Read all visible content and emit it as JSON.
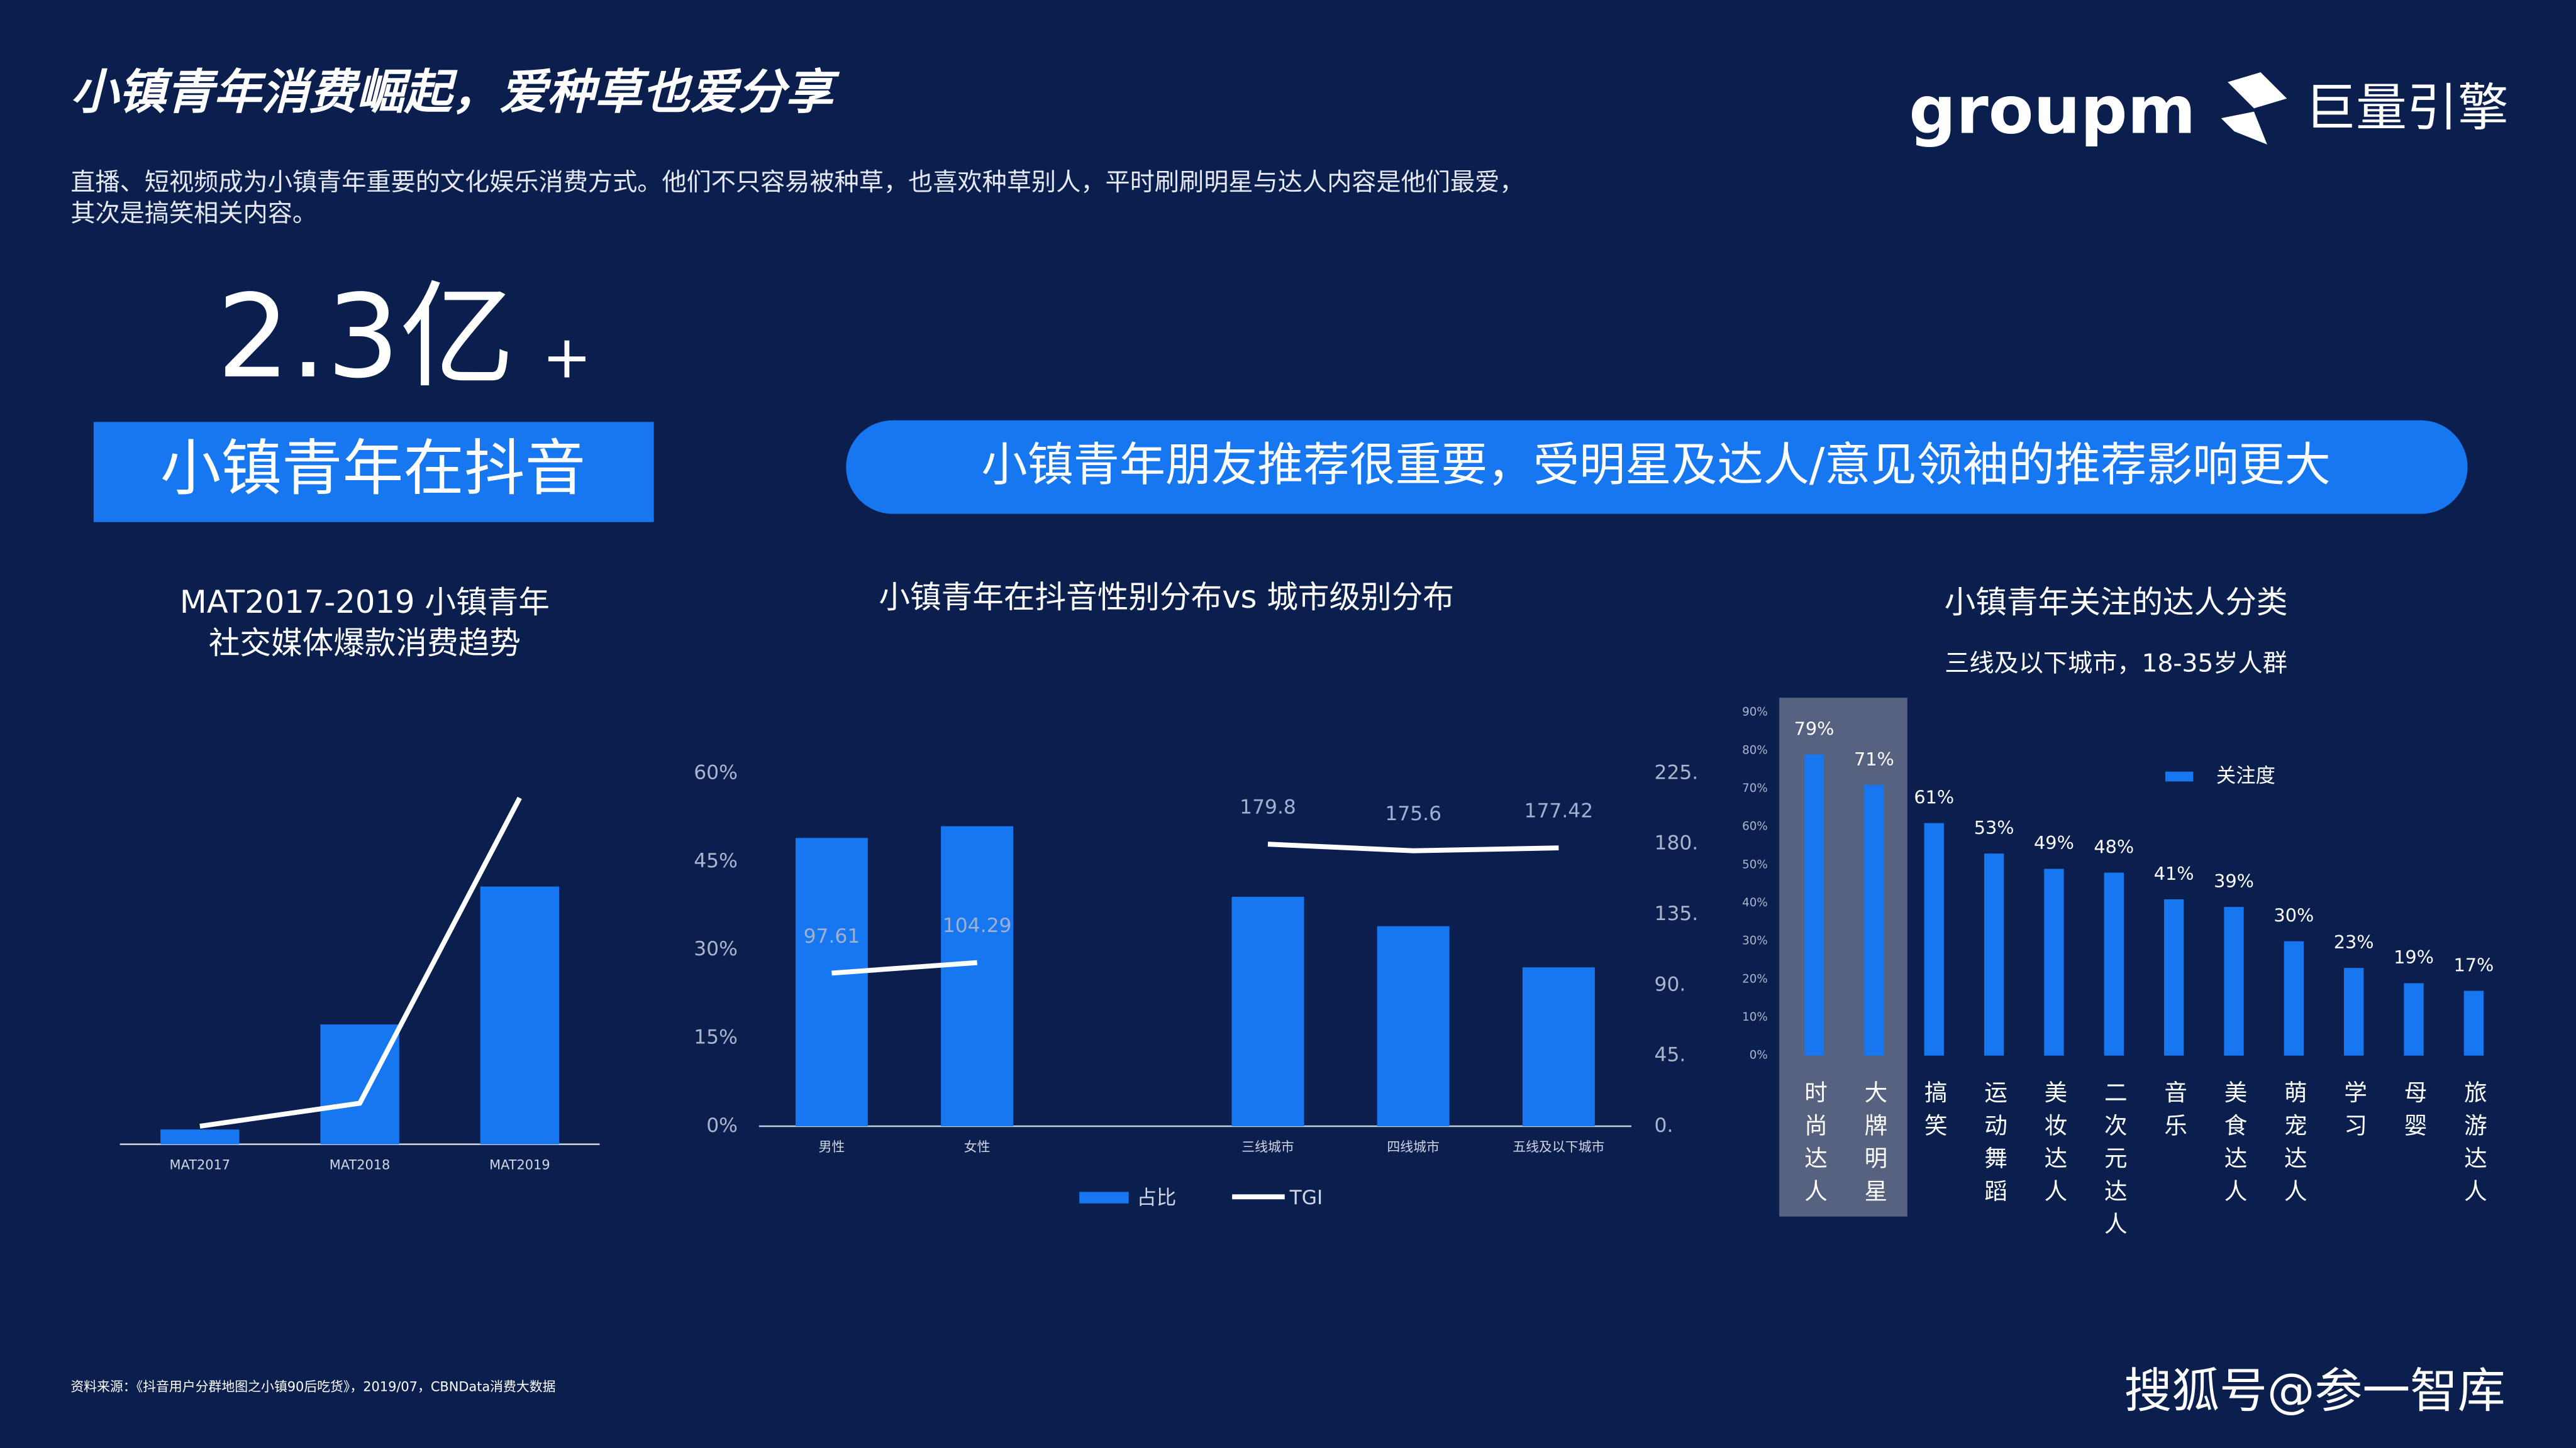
{
  "header": {
    "title": "小镇青年消费崛起，爱种草也爱分享",
    "subtitle": [
      "直播、短视频成为小镇青年重要的文化娱乐消费方式。他们不只容易被种草，也喜欢种草别人，平时刷刷明星与达人内容是他们最爱，",
      "其次是搞笑相关内容。"
    ],
    "logos": [
      "groupm",
      "巨量引擎"
    ]
  },
  "highlight": {
    "stat": "2.3亿",
    "suffix": "+",
    "label": "小镇青年在抖音"
  },
  "banner": "小镇青年朋友推荐很重要，受明星及达人/意见领袖的推荐影响更大",
  "source": "资料来源：《抖音用户分群地图之小镇90后吃货》，2019/07，CBNData消费大数据",
  "watermark": "搜狐号@参一智库",
  "chart_data": [
    {
      "type": "bar",
      "title": [
        "MAT2017-2019 小镇青年",
        "社交媒体爆款消费趋势"
      ],
      "categories": [
        "MAT2017",
        "MAT2018",
        "MAT2019"
      ],
      "series": [
        {
          "type": "bar",
          "color": "#1677f0",
          "values": [
            9,
            73,
            157
          ]
        },
        {
          "type": "line",
          "color": "#ffffff",
          "values": [
            11,
            25,
            211
          ]
        }
      ]
    },
    {
      "type": "bar",
      "title": "小镇青年在抖音性别分布vs 城市级别分布",
      "categories": [
        "男性",
        "女性",
        null,
        "三线城市",
        "四线城市",
        "五线及以下城市"
      ],
      "series": [
        {
          "name": "占比",
          "type": "bar",
          "color": "#1677f0",
          "values": [
            49,
            51,
            null,
            39,
            34,
            27
          ]
        },
        {
          "name": "TGI",
          "type": "line",
          "axis": "y2",
          "color": "#ffffff",
          "values": [
            97.61,
            104.29,
            null,
            179.8,
            175.6,
            177.42
          ]
        }
      ],
      "ylim": [
        0,
        60
      ],
      "yticks": [
        {
          "value": 0,
          "label": "0%"
        },
        {
          "value": 15,
          "label": "15%"
        },
        {
          "value": 30,
          "label": "30%"
        },
        {
          "value": 45,
          "label": "45%"
        },
        {
          "value": 60,
          "label": "60%"
        }
      ],
      "y2lim": [
        0,
        225
      ],
      "y2ticks": [
        {
          "value": 0,
          "label": "0."
        },
        {
          "value": 45,
          "label": "45."
        },
        {
          "value": 90,
          "label": "90."
        },
        {
          "value": 135,
          "label": "135."
        },
        {
          "value": 180,
          "label": "180."
        },
        {
          "value": 225,
          "label": "225."
        }
      ],
      "legend": "bottom"
    },
    {
      "type": "bar",
      "title": "小镇青年关注的达人分类",
      "subtitle": "三线及以下城市，18-35岁人群",
      "categories": [
        "时尚达人",
        "大牌明星",
        "搞笑",
        "运动舞蹈",
        "美妆达人",
        "二次元达人",
        "音乐",
        "美食达人",
        "萌宠达人",
        "学习",
        "母婴",
        "旅游达人"
      ],
      "series": [
        {
          "name": "关注度",
          "type": "bar",
          "color": "#1677f0",
          "values": [
            79,
            71,
            61,
            53,
            49,
            48,
            41,
            39,
            30,
            23,
            19,
            17
          ],
          "value_labels": [
            "79%",
            "71%",
            "61%",
            "53%",
            "49%",
            "48%",
            "41%",
            "39%",
            "30%",
            "23%",
            "19%",
            "17%"
          ]
        }
      ],
      "ylim": [
        0,
        90
      ],
      "yticks": [
        {
          "value": 0,
          "label": "0%"
        },
        {
          "value": 10,
          "label": "10%"
        },
        {
          "value": 20,
          "label": "20%"
        },
        {
          "value": 30,
          "label": "30%"
        },
        {
          "value": 40,
          "label": "40%"
        },
        {
          "value": 50,
          "label": "50%"
        },
        {
          "value": 60,
          "label": "60%"
        },
        {
          "value": 70,
          "label": "70%"
        },
        {
          "value": 80,
          "label": "80%"
        },
        {
          "value": 90,
          "label": "90%"
        }
      ],
      "legend": "top"
    }
  ]
}
